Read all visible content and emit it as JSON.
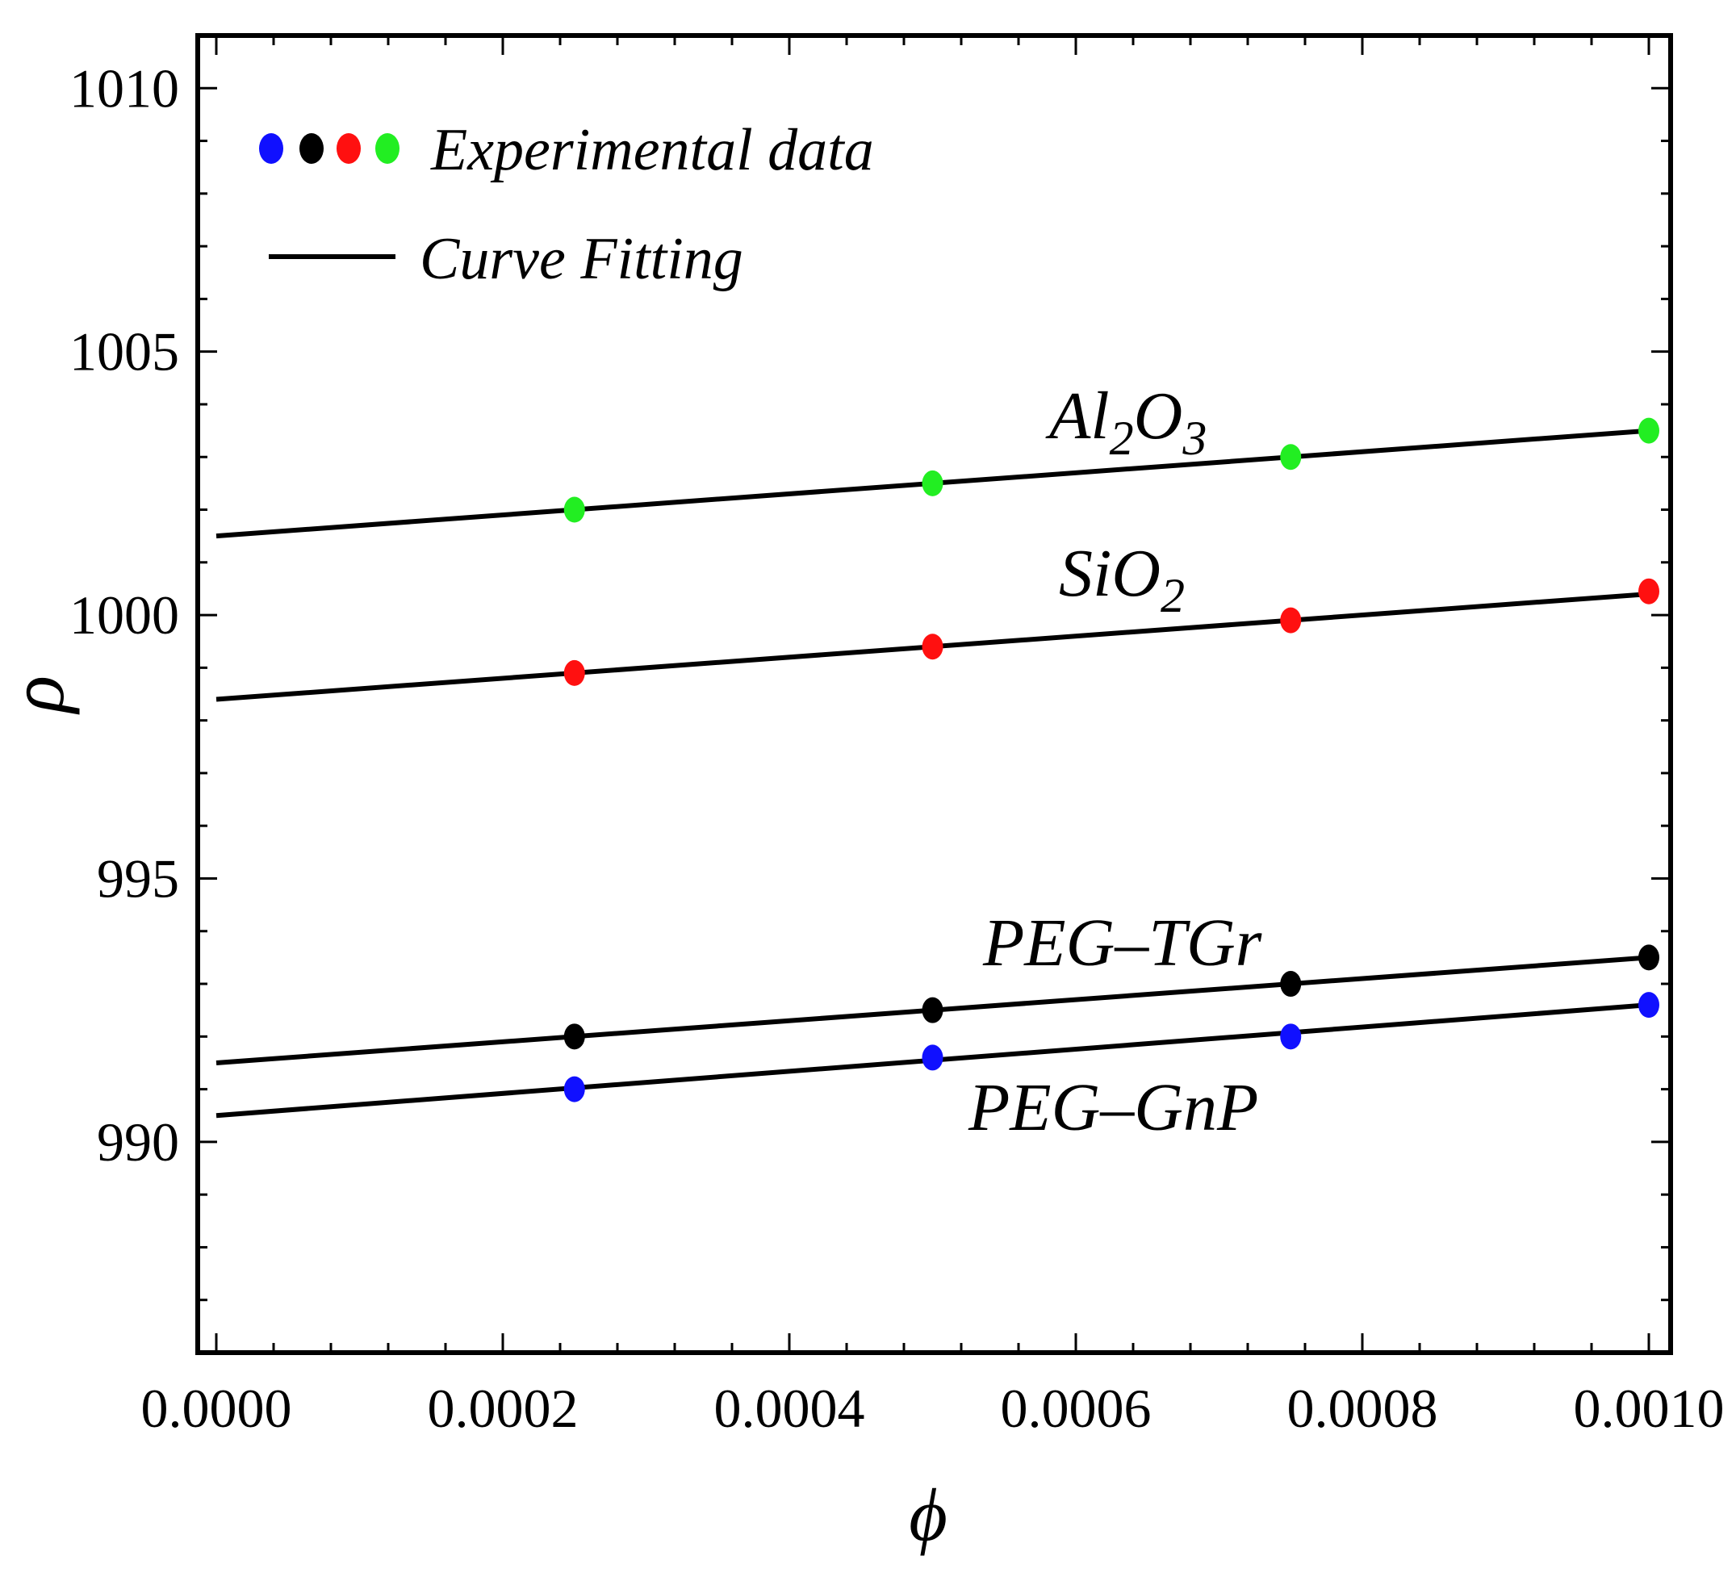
{
  "chart_data": {
    "type": "scatter",
    "title": "",
    "xlabel": "ϕ",
    "ylabel": "ρ",
    "xlim": [
      0,
      0.001
    ],
    "ylim": [
      986,
      1011
    ],
    "x_ticks": [
      0,
      0.0002,
      0.0004,
      0.0006,
      0.0008,
      0.001
    ],
    "x_tick_labels": [
      "0.0000",
      "0.0002",
      "0.0004",
      "0.0006",
      "0.0008",
      "0.0010"
    ],
    "y_ticks": [
      990,
      995,
      1000,
      1005,
      1010
    ],
    "y_tick_labels": [
      "990",
      "995",
      "1000",
      "1005",
      "1010"
    ],
    "grid": false,
    "legend": {
      "position": "top-left",
      "experimental_label": "Experimental data",
      "fit_label": "Curve Fitting",
      "marker_colors": [
        "#1010ff",
        "#000000",
        "#ff1010",
        "#22ee22"
      ]
    },
    "series": [
      {
        "name": "Al2O3",
        "label_main": "Al",
        "label_sub1": "2",
        "label_mid": "O",
        "label_sub2": "3",
        "color": "#22ee22",
        "x": [
          0.00025,
          0.0005,
          0.00075,
          0.001
        ],
        "y": [
          1002.0,
          1002.5,
          1003.0,
          1003.5
        ],
        "fit": {
          "x": [
            0,
            0.001
          ],
          "y": [
            1001.5,
            1003.5
          ]
        }
      },
      {
        "name": "SiO2",
        "label_main": "SiO",
        "label_sub1": "2",
        "color": "#ff1010",
        "x": [
          0.00025,
          0.0005,
          0.00075,
          0.001
        ],
        "y": [
          998.9,
          999.4,
          999.9,
          1000.45
        ],
        "fit": {
          "x": [
            0,
            0.001
          ],
          "y": [
            998.4,
            1000.4
          ]
        }
      },
      {
        "name": "PEG–TGr",
        "color": "#000000",
        "x": [
          0.00025,
          0.0005,
          0.00075,
          0.001
        ],
        "y": [
          992.0,
          992.5,
          993.0,
          993.5
        ],
        "fit": {
          "x": [
            0,
            0.001
          ],
          "y": [
            991.5,
            993.5
          ]
        }
      },
      {
        "name": "PEG–GnP",
        "color": "#1010ff",
        "x": [
          0.00025,
          0.0005,
          0.00075,
          0.001
        ],
        "y": [
          991.0,
          991.6,
          992.0,
          992.6
        ],
        "fit": {
          "x": [
            0,
            0.001
          ],
          "y": [
            990.5,
            992.6
          ]
        }
      }
    ]
  }
}
